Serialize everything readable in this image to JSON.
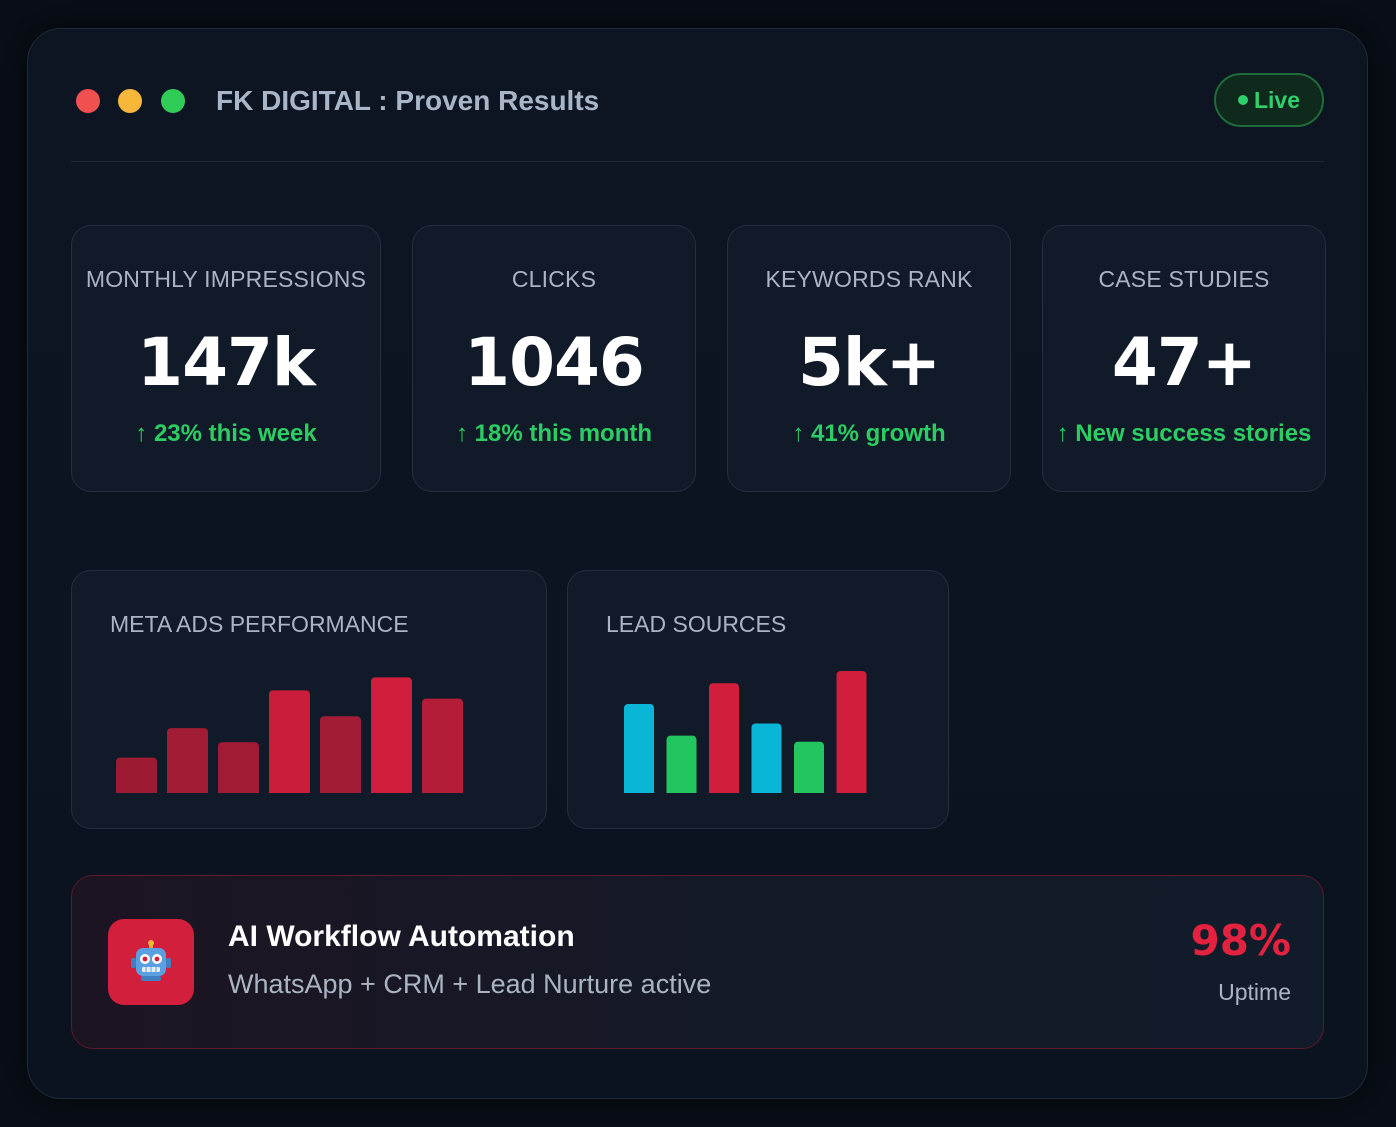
{
  "header": {
    "title": "FK DIGITAL : Proven Results",
    "status": "Live",
    "window_controls": [
      "close",
      "minimize",
      "maximize"
    ]
  },
  "colors": {
    "close": "#f05050",
    "minimize": "#f6b73a",
    "maximize": "#2fcc57",
    "accent": "#d11f3c",
    "positive": "#2ccd62",
    "cyan": "#09b6d8"
  },
  "stats": [
    {
      "label": "MONTHLY IMPRESSIONS",
      "value": "147k",
      "change": "↑ 23% this week"
    },
    {
      "label": "CLICKS",
      "value": "1046",
      "change": "↑ 18% this month"
    },
    {
      "label": "KEYWORDS RANK",
      "value": "5k+",
      "change": "↑ 41% growth"
    },
    {
      "label": "CASE STUDIES",
      "value": "47+",
      "change": "↑ New success stories"
    }
  ],
  "charts": {
    "meta_ads": {
      "title": "META ADS PERFORMANCE"
    },
    "lead_sources": {
      "title": "LEAD SOURCES"
    }
  },
  "chart_data": [
    {
      "type": "bar",
      "title": "META ADS PERFORMANCE",
      "values": [
        30,
        55,
        43,
        87,
        65,
        98,
        80
      ],
      "ylim": [
        0,
        100
      ],
      "colors": [
        "#9c1b33",
        "#a31c36",
        "#a21b35",
        "#c91d3b",
        "#a11c36",
        "#d01e3c",
        "#b31d38"
      ]
    },
    {
      "type": "bar",
      "title": "LEAD SOURCES",
      "values": [
        73,
        47,
        90,
        57,
        42,
        100
      ],
      "ylim": [
        0,
        100
      ],
      "colors": [
        "#09b6d8",
        "#22c55e",
        "#d01e3c",
        "#09b6d8",
        "#22c55e",
        "#d01e3c"
      ]
    }
  ],
  "automation": {
    "icon": "robot-icon",
    "title": "AI Workflow Automation",
    "subtitle": "WhatsApp + CRM + Lead Nurture active",
    "uptime_value": "98%",
    "uptime_label": "Uptime"
  }
}
